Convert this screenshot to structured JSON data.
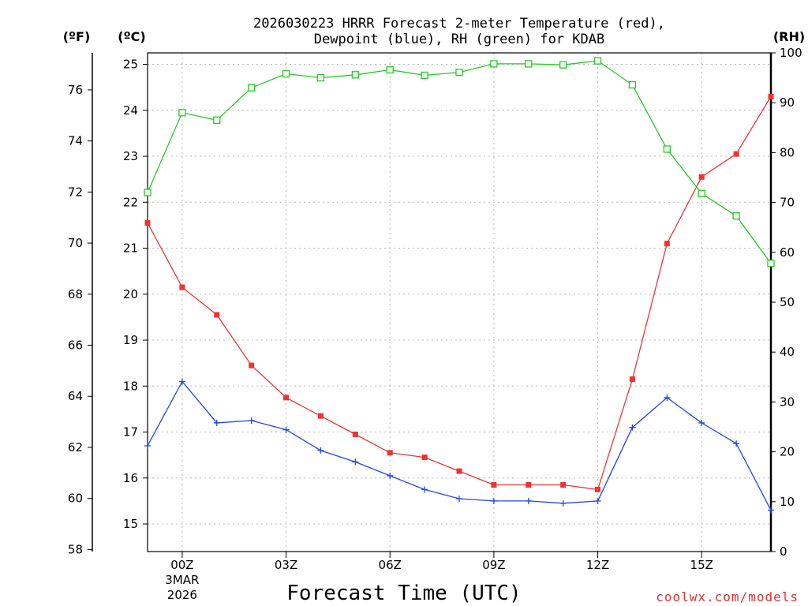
{
  "chart_data": {
    "type": "line",
    "title_line1": "2026030223 HRRR Forecast 2-meter Temperature (red),",
    "title_line2": "Dewpoint (blue), RH (green) for KDAB",
    "xlabel": "Forecast Time (UTC)",
    "credit": "coolwx.com/models",
    "units": {
      "fahrenheit": "(ºF)",
      "celsius": "(ºC)",
      "rh": "(RH)"
    },
    "x_range": [
      -1,
      17
    ],
    "x_ticks": [
      {
        "x": 0,
        "label": "00Z",
        "sub1": "3MAR",
        "sub2": "2026"
      },
      {
        "x": 3,
        "label": "03Z"
      },
      {
        "x": 6,
        "label": "06Z"
      },
      {
        "x": 9,
        "label": "09Z"
      },
      {
        "x": 12,
        "label": "12Z"
      },
      {
        "x": 15,
        "label": "15Z"
      }
    ],
    "y_celsius": {
      "range": [
        14.4,
        25.25
      ],
      "ticks": [
        "15",
        "16",
        "17",
        "18",
        "19",
        "20",
        "21",
        "22",
        "23",
        "24",
        "25"
      ]
    },
    "y_fahrenheit": {
      "ticks": [
        "58",
        "60",
        "62",
        "64",
        "66",
        "68",
        "70",
        "72",
        "74",
        "76"
      ]
    },
    "y_rh": {
      "range": [
        0,
        100
      ],
      "ticks": [
        "0",
        "10",
        "20",
        "30",
        "40",
        "50",
        "60",
        "70",
        "80",
        "90",
        "100"
      ]
    },
    "x": [
      -1,
      0,
      1,
      2,
      3,
      4,
      5,
      6,
      7,
      8,
      9,
      10,
      11,
      12,
      13,
      14,
      15,
      16,
      17
    ],
    "series": [
      {
        "name": "Temperature",
        "color": "#ee3333",
        "axis": "celsius",
        "marker": "filled-square",
        "values": [
          21.55,
          20.15,
          19.55,
          18.45,
          17.75,
          17.35,
          16.95,
          16.55,
          16.45,
          16.15,
          15.85,
          15.85,
          15.85,
          15.75,
          18.15,
          21.1,
          22.55,
          23.05,
          24.3
        ]
      },
      {
        "name": "Dewpoint",
        "color": "#2244ee",
        "axis": "celsius",
        "marker": "plus",
        "values": [
          16.7,
          18.1,
          17.2,
          17.25,
          17.05,
          16.6,
          16.35,
          16.05,
          15.75,
          15.55,
          15.5,
          15.5,
          15.45,
          15.5,
          17.1,
          17.75,
          17.2,
          16.75,
          15.3
        ]
      },
      {
        "name": "RH",
        "color": "#22cc22",
        "axis": "rh",
        "marker": "open-square",
        "values": [
          72,
          88,
          86.5,
          93,
          95.8,
          95,
          95.6,
          96.6,
          95.5,
          96.1,
          97.8,
          97.8,
          97.6,
          98.4,
          93.6,
          80.7,
          71.8,
          67.3,
          57.8
        ]
      }
    ]
  }
}
